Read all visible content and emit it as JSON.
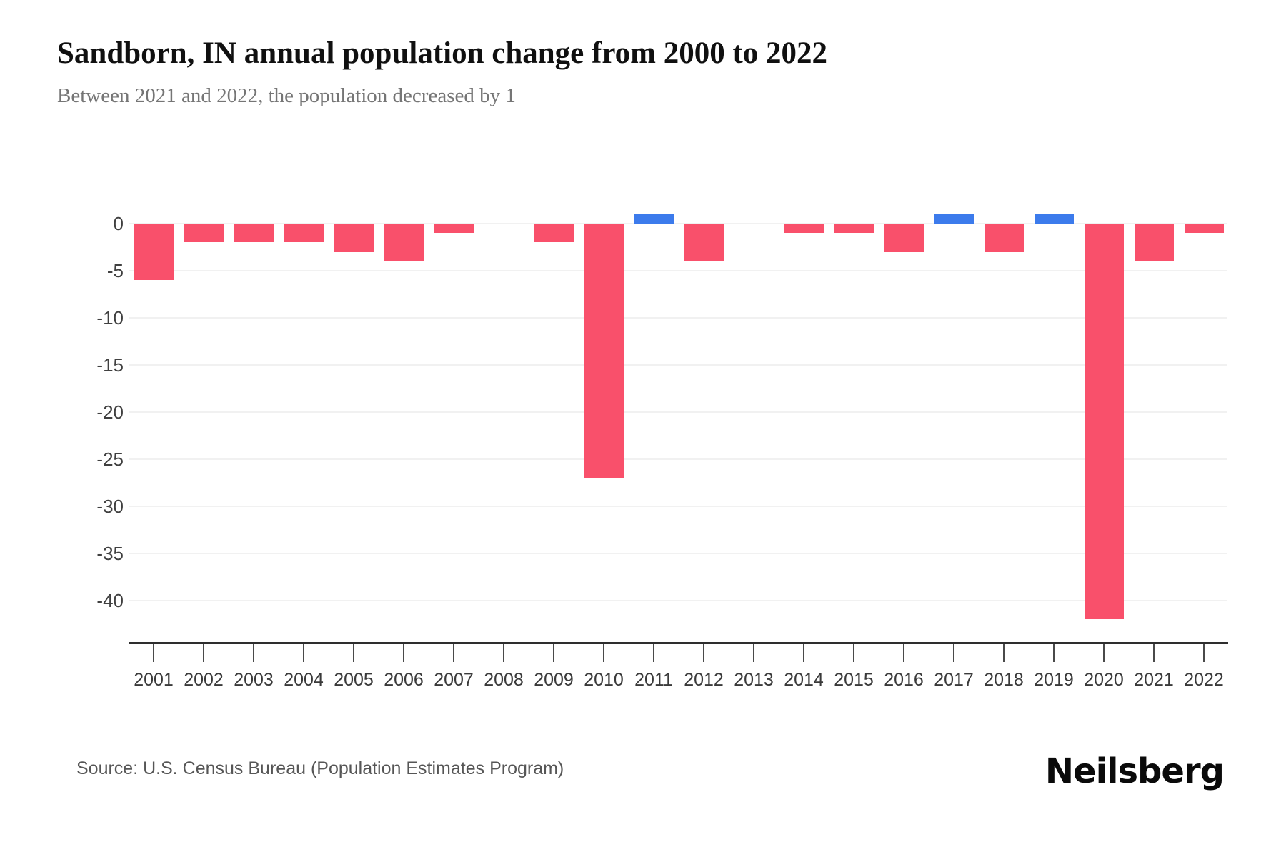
{
  "header": {
    "title": "Sandborn, IN annual population change from 2000 to 2022",
    "subtitle": "Between 2021 and 2022, the population decreased by 1"
  },
  "footer": {
    "source": "Source: U.S. Census Bureau (Population Estimates Program)",
    "brand": "Neilsberg"
  },
  "chart_data": {
    "type": "bar",
    "title": "Sandborn, IN annual population change from 2000 to 2022",
    "categories": [
      "2001",
      "2002",
      "2003",
      "2004",
      "2005",
      "2006",
      "2007",
      "2008",
      "2009",
      "2010",
      "2011",
      "2012",
      "2013",
      "2014",
      "2015",
      "2016",
      "2017",
      "2018",
      "2019",
      "2020",
      "2021",
      "2022"
    ],
    "values": [
      -6,
      -2,
      -2,
      -2,
      -3,
      -4,
      -1,
      0,
      -2,
      -27,
      1,
      -4,
      0,
      -1,
      -1,
      -3,
      1,
      -3,
      1,
      -42,
      -4,
      -1
    ],
    "xlabel": "",
    "ylabel": "",
    "yticks": [
      0,
      -5,
      -10,
      -15,
      -20,
      -25,
      -30,
      -35,
      -40
    ],
    "ylim": [
      2,
      -44
    ],
    "grid": true,
    "legend": "none",
    "colors": {
      "negative_bar": "#F9506B",
      "positive_bar": "#3C7BEC",
      "gridline": "#F1F1F1",
      "axis": "#2E2E2E"
    }
  }
}
